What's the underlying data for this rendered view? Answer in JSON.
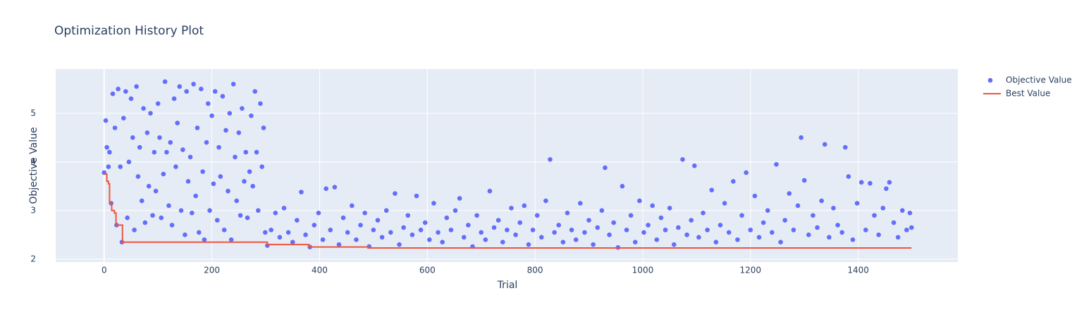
{
  "chart_data": {
    "type": "scatter",
    "title": "Optimization History Plot",
    "x_label": "Trial",
    "y_label": "Objective Value",
    "xlim": [
      -90,
      1585
    ],
    "ylim": [
      1.94,
      5.91
    ],
    "xticks": [
      0,
      200,
      400,
      600,
      800,
      1000,
      1200,
      1400
    ],
    "yticks": [
      2,
      3,
      4,
      5
    ],
    "grid": true,
    "legend": "outside-right",
    "background": "#e5ecf6",
    "series": [
      {
        "name": "Objective Value",
        "mode": "markers",
        "color": "#636efa",
        "x": [
          0,
          3,
          5,
          8,
          10,
          13,
          16,
          20,
          23,
          26,
          30,
          33,
          36,
          40,
          43,
          46,
          50,
          53,
          56,
          60,
          63,
          66,
          70,
          73,
          76,
          80,
          83,
          86,
          90,
          93,
          96,
          100,
          103,
          106,
          110,
          113,
          116,
          120,
          123,
          126,
          130,
          133,
          136,
          140,
          143,
          146,
          150,
          153,
          156,
          160,
          163,
          166,
          170,
          173,
          176,
          180,
          183,
          186,
          190,
          193,
          196,
          200,
          203,
          206,
          210,
          213,
          216,
          220,
          223,
          226,
          230,
          233,
          236,
          240,
          243,
          246,
          250,
          253,
          256,
          260,
          263,
          266,
          270,
          273,
          276,
          280,
          283,
          286,
          290,
          293,
          296,
          299,
          303,
          310,
          318,
          326,
          334,
          342,
          350,
          358,
          366,
          374,
          382,
          390,
          398,
          406,
          412,
          420,
          428,
          436,
          444,
          452,
          460,
          468,
          476,
          484,
          492,
          500,
          508,
          516,
          524,
          532,
          540,
          548,
          556,
          564,
          572,
          580,
          588,
          596,
          604,
          612,
          620,
          628,
          636,
          644,
          652,
          660,
          668,
          676,
          684,
          692,
          700,
          708,
          716,
          724,
          732,
          740,
          748,
          756,
          764,
          772,
          780,
          788,
          796,
          804,
          812,
          820,
          828,
          836,
          844,
          852,
          860,
          868,
          876,
          884,
          892,
          900,
          908,
          916,
          924,
          930,
          938,
          946,
          954,
          962,
          970,
          978,
          986,
          994,
          1002,
          1010,
          1018,
          1026,
          1034,
          1042,
          1050,
          1058,
          1066,
          1074,
          1082,
          1090,
          1096,
          1104,
          1112,
          1120,
          1128,
          1136,
          1144,
          1152,
          1160,
          1168,
          1176,
          1184,
          1192,
          1200,
          1208,
          1216,
          1224,
          1232,
          1240,
          1248,
          1256,
          1264,
          1272,
          1280,
          1288,
          1294,
          1300,
          1308,
          1316,
          1324,
          1332,
          1338,
          1346,
          1354,
          1362,
          1370,
          1376,
          1382,
          1390,
          1398,
          1406,
          1414,
          1422,
          1430,
          1438,
          1446,
          1452,
          1458,
          1466,
          1474,
          1482,
          1490,
          1496,
          1499
        ],
        "values": [
          3.78,
          4.85,
          4.3,
          3.9,
          4.2,
          3.15,
          5.4,
          4.7,
          2.7,
          5.5,
          3.9,
          2.35,
          4.9,
          5.45,
          2.85,
          4.0,
          5.3,
          4.5,
          2.6,
          5.55,
          3.7,
          4.3,
          3.2,
          5.1,
          2.75,
          4.6,
          3.5,
          5.0,
          2.9,
          4.2,
          3.4,
          5.2,
          4.5,
          2.85,
          3.75,
          5.65,
          4.2,
          3.1,
          4.4,
          2.7,
          5.3,
          3.9,
          4.8,
          5.55,
          3.0,
          4.25,
          2.5,
          5.45,
          3.6,
          4.1,
          2.95,
          5.6,
          3.3,
          4.7,
          2.55,
          5.5,
          3.8,
          2.4,
          4.4,
          5.2,
          3.0,
          4.95,
          3.55,
          5.45,
          2.8,
          4.3,
          3.7,
          5.35,
          2.6,
          4.65,
          3.4,
          5.0,
          2.4,
          5.6,
          4.1,
          3.2,
          4.6,
          2.9,
          5.1,
          3.6,
          4.2,
          2.85,
          3.8,
          4.95,
          3.5,
          5.45,
          4.2,
          3.0,
          5.2,
          3.9,
          4.7,
          2.55,
          2.28,
          2.6,
          2.95,
          2.45,
          3.05,
          2.55,
          2.35,
          2.8,
          3.38,
          2.5,
          2.25,
          2.7,
          2.95,
          2.4,
          3.45,
          2.6,
          3.48,
          2.3,
          2.85,
          2.55,
          3.1,
          2.4,
          2.7,
          2.95,
          2.26,
          2.6,
          2.8,
          2.45,
          3.0,
          2.55,
          3.35,
          2.3,
          2.65,
          2.9,
          2.5,
          3.3,
          2.6,
          2.75,
          2.4,
          3.15,
          2.55,
          2.35,
          2.85,
          2.6,
          3.0,
          3.25,
          2.45,
          2.7,
          2.26,
          2.9,
          2.55,
          2.4,
          3.4,
          2.65,
          2.8,
          2.35,
          2.6,
          3.05,
          2.5,
          2.75,
          3.1,
          2.3,
          2.6,
          2.9,
          2.45,
          3.2,
          4.05,
          2.55,
          2.7,
          2.35,
          2.95,
          2.6,
          2.4,
          3.15,
          2.55,
          2.8,
          2.3,
          2.65,
          3.0,
          3.88,
          2.5,
          2.75,
          2.24,
          3.5,
          2.6,
          2.9,
          2.35,
          3.2,
          2.55,
          2.7,
          3.1,
          2.4,
          2.85,
          2.6,
          3.05,
          2.3,
          2.65,
          4.05,
          2.5,
          2.8,
          3.92,
          2.45,
          2.95,
          2.6,
          3.42,
          2.35,
          2.7,
          3.15,
          2.55,
          3.6,
          2.4,
          2.9,
          3.78,
          2.6,
          3.3,
          2.45,
          2.75,
          3.0,
          2.55,
          3.95,
          2.35,
          2.8,
          3.35,
          2.6,
          3.1,
          4.5,
          3.62,
          2.5,
          2.9,
          2.65,
          3.2,
          4.36,
          2.45,
          3.05,
          2.7,
          2.55,
          4.3,
          3.7,
          2.4,
          3.15,
          3.58,
          2.6,
          3.56,
          2.9,
          2.5,
          3.05,
          3.45,
          3.58,
          2.75,
          2.45,
          3.0,
          2.6,
          2.95,
          2.65
        ]
      },
      {
        "name": "Best Value",
        "mode": "lines",
        "shape": "hv",
        "color": "#ef553b",
        "x": [
          0,
          5,
          8,
          10,
          14,
          19,
          22,
          34,
          303,
          380,
          490,
          1499
        ],
        "values": [
          3.75,
          3.6,
          3.55,
          3.15,
          3.0,
          2.95,
          2.7,
          2.35,
          2.3,
          2.25,
          2.23,
          2.23
        ]
      }
    ]
  }
}
